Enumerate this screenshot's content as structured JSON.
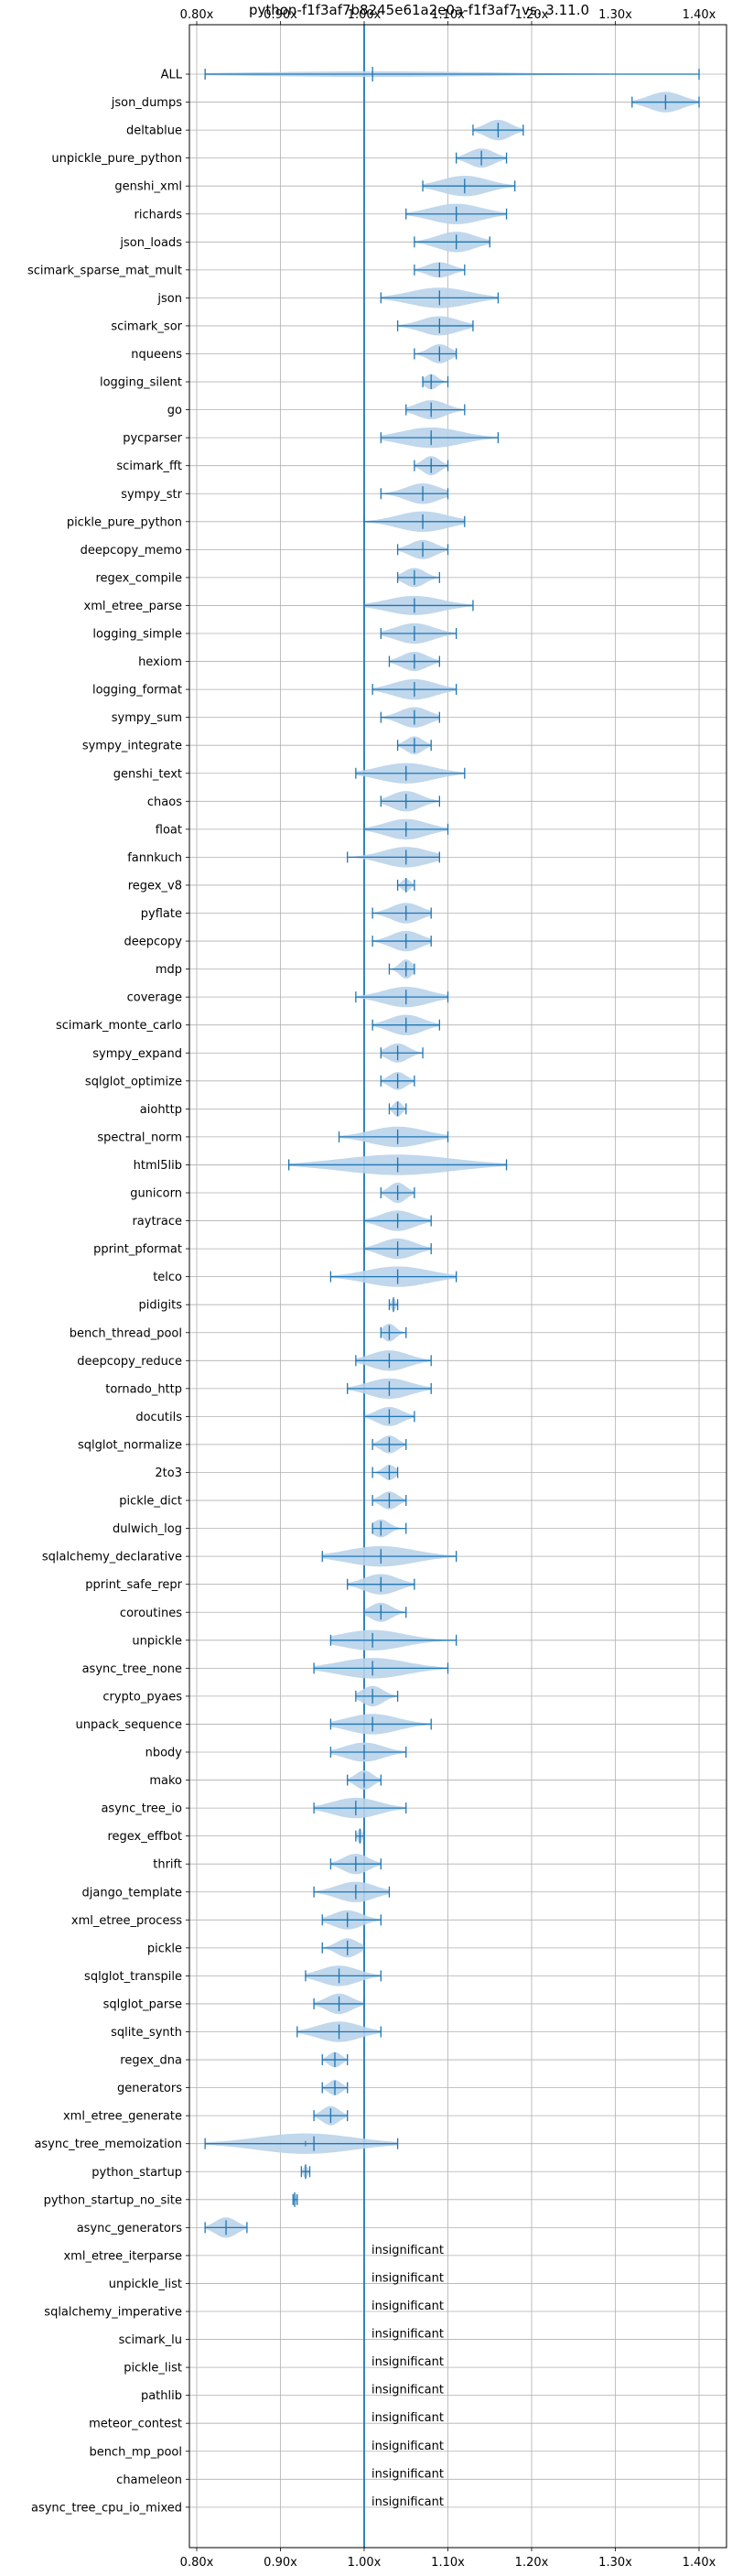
{
  "chart_data": {
    "type": "violin",
    "title": "python-f1f3af7b8245e61a2e0a-f1f3af7 vs. 3.11.0",
    "orientation": "horizontal",
    "xlim": [
      0.79,
      1.43
    ],
    "x_ticks": [
      0.8,
      0.9,
      1.0,
      1.1,
      1.2,
      1.3,
      1.4
    ],
    "x_tick_labels": [
      "0.80x",
      "0.90x",
      "1.00x",
      "1.10x",
      "1.20x",
      "1.30x",
      "1.40x"
    ],
    "grid": true,
    "reference_line": 1.0,
    "colors": {
      "line": "#1f77b4",
      "violin": "#b9d3ea"
    },
    "insignificant_label": "insignificant",
    "benchmarks": [
      {
        "name": "ALL",
        "min": 0.81,
        "max": 1.4,
        "mean": 1.01,
        "median": 1.01,
        "width": 0.22
      },
      {
        "name": "json_dumps",
        "min": 1.32,
        "max": 1.4,
        "mean": 1.36,
        "median": 1.36,
        "width": 0.8
      },
      {
        "name": "deltablue",
        "min": 1.13,
        "max": 1.19,
        "mean": 1.16,
        "median": 1.16,
        "width": 0.8
      },
      {
        "name": "unpickle_pure_python",
        "min": 1.11,
        "max": 1.17,
        "mean": 1.14,
        "median": 1.14,
        "width": 0.75
      },
      {
        "name": "genshi_xml",
        "min": 1.07,
        "max": 1.18,
        "mean": 1.12,
        "median": 1.12,
        "width": 0.8
      },
      {
        "name": "richards",
        "min": 1.05,
        "max": 1.17,
        "mean": 1.11,
        "median": 1.11,
        "width": 0.8
      },
      {
        "name": "json_loads",
        "min": 1.06,
        "max": 1.15,
        "mean": 1.11,
        "median": 1.11,
        "width": 0.8
      },
      {
        "name": "scimark_sparse_mat_mult",
        "min": 1.06,
        "max": 1.12,
        "mean": 1.09,
        "median": 1.09,
        "width": 0.6
      },
      {
        "name": "json",
        "min": 1.02,
        "max": 1.16,
        "mean": 1.09,
        "median": 1.09,
        "width": 0.8
      },
      {
        "name": "scimark_sor",
        "min": 1.04,
        "max": 1.13,
        "mean": 1.09,
        "median": 1.09,
        "width": 0.75
      },
      {
        "name": "nqueens",
        "min": 1.06,
        "max": 1.11,
        "mean": 1.09,
        "median": 1.09,
        "width": 0.75
      },
      {
        "name": "logging_silent",
        "min": 1.07,
        "max": 1.1,
        "mean": 1.08,
        "median": 1.08,
        "width": 0.6
      },
      {
        "name": "go",
        "min": 1.05,
        "max": 1.12,
        "mean": 1.08,
        "median": 1.08,
        "width": 0.75
      },
      {
        "name": "pycparser",
        "min": 1.02,
        "max": 1.16,
        "mean": 1.08,
        "median": 1.08,
        "width": 0.8
      },
      {
        "name": "scimark_fft",
        "min": 1.06,
        "max": 1.1,
        "mean": 1.08,
        "median": 1.08,
        "width": 0.75
      },
      {
        "name": "sympy_str",
        "min": 1.02,
        "max": 1.1,
        "mean": 1.07,
        "median": 1.07,
        "width": 0.8
      },
      {
        "name": "pickle_pure_python",
        "min": 1.0,
        "max": 1.12,
        "mean": 1.07,
        "median": 1.07,
        "width": 0.8
      },
      {
        "name": "deepcopy_memo",
        "min": 1.04,
        "max": 1.1,
        "mean": 1.07,
        "median": 1.07,
        "width": 0.75
      },
      {
        "name": "regex_compile",
        "min": 1.04,
        "max": 1.09,
        "mean": 1.06,
        "median": 1.06,
        "width": 0.75
      },
      {
        "name": "xml_etree_parse",
        "min": 1.0,
        "max": 1.13,
        "mean": 1.06,
        "median": 1.06,
        "width": 0.75
      },
      {
        "name": "logging_simple",
        "min": 1.02,
        "max": 1.11,
        "mean": 1.06,
        "median": 1.06,
        "width": 0.8
      },
      {
        "name": "hexiom",
        "min": 1.03,
        "max": 1.09,
        "mean": 1.06,
        "median": 1.06,
        "width": 0.75
      },
      {
        "name": "logging_format",
        "min": 1.01,
        "max": 1.11,
        "mean": 1.06,
        "median": 1.06,
        "width": 0.8
      },
      {
        "name": "sympy_sum",
        "min": 1.02,
        "max": 1.09,
        "mean": 1.06,
        "median": 1.06,
        "width": 0.8
      },
      {
        "name": "sympy_integrate",
        "min": 1.04,
        "max": 1.08,
        "mean": 1.06,
        "median": 1.06,
        "width": 0.7
      },
      {
        "name": "genshi_text",
        "min": 0.99,
        "max": 1.12,
        "mean": 1.05,
        "median": 1.05,
        "width": 0.8
      },
      {
        "name": "chaos",
        "min": 1.02,
        "max": 1.09,
        "mean": 1.05,
        "median": 1.05,
        "width": 0.8
      },
      {
        "name": "float",
        "min": 1.0,
        "max": 1.1,
        "mean": 1.05,
        "median": 1.05,
        "width": 0.8
      },
      {
        "name": "fannkuch",
        "min": 0.98,
        "max": 1.09,
        "mean": 1.05,
        "median": 1.05,
        "width": 0.8
      },
      {
        "name": "regex_v8",
        "min": 1.04,
        "max": 1.06,
        "mean": 1.05,
        "median": 1.05,
        "width": 0.5
      },
      {
        "name": "pyflate",
        "min": 1.01,
        "max": 1.08,
        "mean": 1.05,
        "median": 1.05,
        "width": 0.8
      },
      {
        "name": "deepcopy",
        "min": 1.01,
        "max": 1.08,
        "mean": 1.05,
        "median": 1.05,
        "width": 0.8
      },
      {
        "name": "mdp",
        "min": 1.03,
        "max": 1.06,
        "mean": 1.05,
        "median": 1.05,
        "width": 0.75
      },
      {
        "name": "coverage",
        "min": 0.99,
        "max": 1.1,
        "mean": 1.05,
        "median": 1.05,
        "width": 0.8
      },
      {
        "name": "scimark_monte_carlo",
        "min": 1.01,
        "max": 1.09,
        "mean": 1.05,
        "median": 1.05,
        "width": 0.8
      },
      {
        "name": "sympy_expand",
        "min": 1.02,
        "max": 1.07,
        "mean": 1.04,
        "median": 1.04,
        "width": 0.75
      },
      {
        "name": "sqlglot_optimize",
        "min": 1.02,
        "max": 1.06,
        "mean": 1.04,
        "median": 1.04,
        "width": 0.7
      },
      {
        "name": "aiohttp",
        "min": 1.03,
        "max": 1.05,
        "mean": 1.04,
        "median": 1.04,
        "width": 0.6
      },
      {
        "name": "spectral_norm",
        "min": 0.97,
        "max": 1.1,
        "mean": 1.04,
        "median": 1.04,
        "width": 0.8
      },
      {
        "name": "html5lib",
        "min": 0.91,
        "max": 1.17,
        "mean": 1.04,
        "median": 1.04,
        "width": 0.8
      },
      {
        "name": "gunicorn",
        "min": 1.02,
        "max": 1.06,
        "mean": 1.04,
        "median": 1.04,
        "width": 0.8
      },
      {
        "name": "raytrace",
        "min": 1.0,
        "max": 1.08,
        "mean": 1.04,
        "median": 1.04,
        "width": 0.8
      },
      {
        "name": "pprint_pformat",
        "min": 1.0,
        "max": 1.08,
        "mean": 1.04,
        "median": 1.04,
        "width": 0.8
      },
      {
        "name": "telco",
        "min": 0.96,
        "max": 1.11,
        "mean": 1.04,
        "median": 1.04,
        "width": 0.8
      },
      {
        "name": "pidigits",
        "min": 1.03,
        "max": 1.04,
        "mean": 1.035,
        "median": 1.035,
        "width": 0.5
      },
      {
        "name": "bench_thread_pool",
        "min": 1.02,
        "max": 1.05,
        "mean": 1.03,
        "median": 1.03,
        "width": 0.7
      },
      {
        "name": "deepcopy_reduce",
        "min": 0.99,
        "max": 1.08,
        "mean": 1.03,
        "median": 1.03,
        "width": 0.8
      },
      {
        "name": "tornado_http",
        "min": 0.98,
        "max": 1.08,
        "mean": 1.03,
        "median": 1.03,
        "width": 0.8
      },
      {
        "name": "docutils",
        "min": 1.0,
        "max": 1.06,
        "mean": 1.03,
        "median": 1.03,
        "width": 0.75
      },
      {
        "name": "sqlglot_normalize",
        "min": 1.01,
        "max": 1.05,
        "mean": 1.03,
        "median": 1.03,
        "width": 0.7
      },
      {
        "name": "2to3",
        "min": 1.01,
        "max": 1.04,
        "mean": 1.03,
        "median": 1.03,
        "width": 0.6
      },
      {
        "name": "pickle_dict",
        "min": 1.01,
        "max": 1.05,
        "mean": 1.03,
        "median": 1.03,
        "width": 0.7
      },
      {
        "name": "dulwich_log",
        "min": 1.01,
        "max": 1.05,
        "mean": 1.02,
        "median": 1.02,
        "width": 0.7
      },
      {
        "name": "sqlalchemy_declarative",
        "min": 0.95,
        "max": 1.11,
        "mean": 1.02,
        "median": 1.02,
        "width": 0.8
      },
      {
        "name": "pprint_safe_repr",
        "min": 0.98,
        "max": 1.06,
        "mean": 1.02,
        "median": 1.02,
        "width": 0.8
      },
      {
        "name": "coroutines",
        "min": 1.0,
        "max": 1.05,
        "mean": 1.02,
        "median": 1.02,
        "width": 0.75
      },
      {
        "name": "unpickle",
        "min": 0.96,
        "max": 1.11,
        "mean": 1.01,
        "median": 1.01,
        "width": 0.8
      },
      {
        "name": "async_tree_none",
        "min": 0.94,
        "max": 1.1,
        "mean": 1.01,
        "median": 1.01,
        "width": 0.8
      },
      {
        "name": "crypto_pyaes",
        "min": 0.99,
        "max": 1.04,
        "mean": 1.01,
        "median": 1.01,
        "width": 0.8
      },
      {
        "name": "unpack_sequence",
        "min": 0.96,
        "max": 1.08,
        "mean": 1.01,
        "median": 1.01,
        "width": 0.8
      },
      {
        "name": "nbody",
        "min": 0.96,
        "max": 1.05,
        "mean": 1.0,
        "median": 1.0,
        "width": 0.75
      },
      {
        "name": "mako",
        "min": 0.98,
        "max": 1.02,
        "mean": 1.0,
        "median": 1.0,
        "width": 0.75
      },
      {
        "name": "async_tree_io",
        "min": 0.94,
        "max": 1.05,
        "mean": 0.99,
        "median": 0.99,
        "width": 0.8
      },
      {
        "name": "regex_effbot",
        "min": 0.99,
        "max": 1.0,
        "mean": 0.995,
        "median": 0.995,
        "width": 0.6
      },
      {
        "name": "thrift",
        "min": 0.96,
        "max": 1.02,
        "mean": 0.99,
        "median": 0.99,
        "width": 0.8
      },
      {
        "name": "django_template",
        "min": 0.94,
        "max": 1.03,
        "mean": 0.99,
        "median": 0.99,
        "width": 0.8
      },
      {
        "name": "xml_etree_process",
        "min": 0.95,
        "max": 1.02,
        "mean": 0.98,
        "median": 0.98,
        "width": 0.75
      },
      {
        "name": "pickle",
        "min": 0.95,
        "max": 1.0,
        "mean": 0.98,
        "median": 0.98,
        "width": 0.75
      },
      {
        "name": "sqlglot_transpile",
        "min": 0.93,
        "max": 1.02,
        "mean": 0.97,
        "median": 0.97,
        "width": 0.8
      },
      {
        "name": "sqlglot_parse",
        "min": 0.94,
        "max": 1.0,
        "mean": 0.97,
        "median": 0.97,
        "width": 0.8
      },
      {
        "name": "sqlite_synth",
        "min": 0.92,
        "max": 1.02,
        "mean": 0.97,
        "median": 0.97,
        "width": 0.8
      },
      {
        "name": "regex_dna",
        "min": 0.95,
        "max": 0.98,
        "mean": 0.965,
        "median": 0.965,
        "width": 0.6
      },
      {
        "name": "generators",
        "min": 0.95,
        "max": 0.98,
        "mean": 0.965,
        "median": 0.965,
        "width": 0.6
      },
      {
        "name": "xml_etree_generate",
        "min": 0.94,
        "max": 0.98,
        "mean": 0.96,
        "median": 0.96,
        "width": 0.75
      },
      {
        "name": "async_tree_memoization",
        "min": 0.81,
        "max": 1.04,
        "mean": 0.94,
        "median": 0.93,
        "width": 0.8
      },
      {
        "name": "python_startup",
        "min": 0.925,
        "max": 0.935,
        "mean": 0.93,
        "median": 0.93,
        "width": 0.5
      },
      {
        "name": "python_startup_no_site",
        "min": 0.915,
        "max": 0.92,
        "mean": 0.917,
        "median": 0.917,
        "width": 0.5
      },
      {
        "name": "async_generators",
        "min": 0.81,
        "max": 0.86,
        "mean": 0.835,
        "median": 0.835,
        "width": 0.8
      },
      {
        "name": "xml_etree_iterparse",
        "insignificant": true
      },
      {
        "name": "unpickle_list",
        "insignificant": true
      },
      {
        "name": "sqlalchemy_imperative",
        "insignificant": true
      },
      {
        "name": "scimark_lu",
        "insignificant": true
      },
      {
        "name": "pickle_list",
        "insignificant": true
      },
      {
        "name": "pathlib",
        "insignificant": true
      },
      {
        "name": "meteor_contest",
        "insignificant": true
      },
      {
        "name": "bench_mp_pool",
        "insignificant": true
      },
      {
        "name": "chameleon",
        "insignificant": true
      },
      {
        "name": "async_tree_cpu_io_mixed",
        "insignificant": true
      }
    ]
  }
}
